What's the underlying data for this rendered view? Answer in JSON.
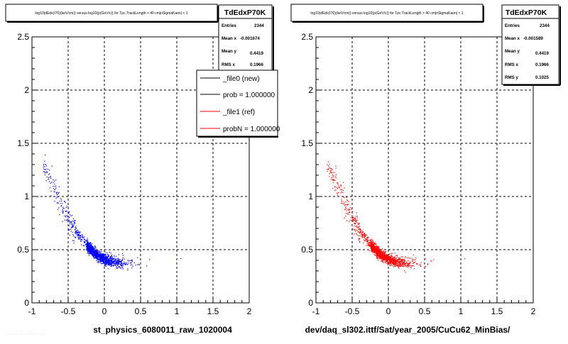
{
  "panels": [
    {
      "title": "log10(dEdx(I70)(keV/cm)) versus log10(p(GeV/c)) for Tpc.TrackLength > 40 cm|nSigmaKaon| < 1",
      "stats": {
        "name": "TdEdxP70K",
        "rows": [
          {
            "label": "Entries",
            "value": "2344"
          },
          {
            "label": "Mean x",
            "value": "-0.001674"
          },
          {
            "label": "Mean y",
            "value": "0.4419"
          },
          {
            "label": "RMS x",
            "value": "0.1966"
          }
        ]
      },
      "legend": [
        {
          "label": "_file0 (new)",
          "color": "#000000"
        },
        {
          "label": "prob = 1.000000",
          "color": "#000000"
        },
        {
          "label": "_file1 (ref)",
          "color": "#ff0000"
        },
        {
          "label": "probN = 1.000000",
          "color": "#ff0000"
        }
      ],
      "xlabel": "st_physics_6080011_raw_1020004",
      "color": "#0000ff"
    },
    {
      "title": "log10(dEdx(I70)(keV/cm)) versus log10(p(GeV/c)) for Tpc.TrackLength > 40 cm|nSigmaKaon| < 1",
      "stats": {
        "name": "TdEdxP70K",
        "rows": [
          {
            "label": "Entries",
            "value": "2344"
          },
          {
            "label": "Mean x",
            "value": "-0.001589"
          },
          {
            "label": "Mean y",
            "value": "0.4419"
          },
          {
            "label": "RMS x",
            "value": "0.1966"
          },
          {
            "label": "RMS y",
            "value": "0.1025"
          }
        ]
      },
      "xlabel": "dev/daq_sl302.ittf/Sat/year_2005/CuCu62_MinBias/",
      "color": "#ff0000"
    }
  ],
  "chart_data": [
    {
      "type": "scatter",
      "title": "log10(dEdx(I70)(keV/cm)) versus log10(p(GeV/c)) for Tpc.TrackLength > 40 cm|nSigmaKaon| < 1",
      "xlabel": "st_physics_6080011_raw_1020004",
      "ylabel": "",
      "xlim": [
        -1,
        2
      ],
      "ylim": [
        0,
        2.5
      ],
      "x_ticks": [
        "-1",
        "-0.5",
        "0",
        "0.5",
        "1",
        "1.5",
        "2"
      ],
      "y_ticks": [
        "0",
        "0.5",
        "1",
        "1.5",
        "2",
        "2.5"
      ],
      "grid": true,
      "series": [
        {
          "name": "_file0 (new)",
          "color": "#0000ff",
          "band": {
            "x": [
              -0.82,
              -0.7,
              -0.6,
              -0.5,
              -0.4,
              -0.3,
              -0.2,
              -0.1,
              0.0,
              0.1,
              0.2,
              0.3,
              0.4,
              0.5,
              0.6
            ],
            "y": [
              1.28,
              1.08,
              0.93,
              0.79,
              0.68,
              0.59,
              0.51,
              0.45,
              0.41,
              0.39,
              0.38,
              0.375,
              0.375,
              0.38,
              0.39
            ]
          },
          "entries": 2344,
          "mean_x": -0.001674,
          "mean_y": 0.4419,
          "rms_x": 0.1966
        }
      ],
      "legend_position": "top-right"
    },
    {
      "type": "scatter",
      "title": "log10(dEdx(I70)(keV/cm)) versus log10(p(GeV/c)) for Tpc.TrackLength > 40 cm|nSigmaKaon| < 1",
      "xlabel": "dev/daq_sl302.ittf/Sat/year_2005/CuCu62_MinBias/",
      "ylabel": "",
      "xlim": [
        -1,
        2
      ],
      "ylim": [
        0,
        2.5
      ],
      "x_ticks": [
        "-1",
        "-0.5",
        "0",
        "0.5",
        "1",
        "1.5",
        "2"
      ],
      "y_ticks": [
        "0",
        "0.5",
        "1",
        "1.5",
        "2",
        "2.5"
      ],
      "grid": true,
      "series": [
        {
          "name": "_file1 (ref)",
          "color": "#ff0000",
          "band": {
            "x": [
              -0.82,
              -0.7,
              -0.6,
              -0.5,
              -0.4,
              -0.3,
              -0.2,
              -0.1,
              0.0,
              0.1,
              0.2,
              0.3,
              0.4,
              0.5,
              0.6
            ],
            "y": [
              1.28,
              1.08,
              0.93,
              0.79,
              0.68,
              0.59,
              0.51,
              0.45,
              0.41,
              0.39,
              0.38,
              0.375,
              0.375,
              0.38,
              0.39
            ]
          },
          "entries": 2344,
          "mean_x": -0.001589,
          "mean_y": 0.4419,
          "rms_x": 0.1966,
          "rms_y": 0.1025
        }
      ]
    }
  ]
}
